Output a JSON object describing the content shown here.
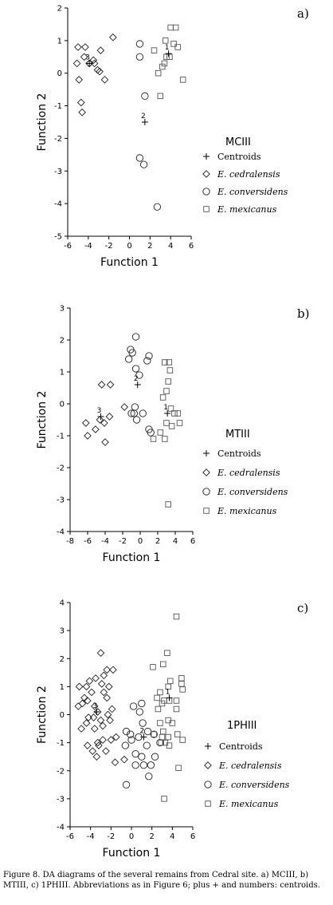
{
  "caption": "Figure 8. DA diagrams of the several remains from Cedral site. a) MCIII, b) MTIII, c) 1PHIII. Abbreviations as in Figure 6; plus + and numbers: centroids.",
  "chart_data": [
    {
      "type": "scatter",
      "panel_label": "a)",
      "title": "MCIII",
      "xlabel": "Function  1",
      "ylabel": "Function  2",
      "xlim": [
        -6,
        6
      ],
      "ylim": [
        -5,
        2
      ],
      "xticks": [
        -6,
        -4,
        -2,
        0,
        2,
        4,
        6
      ],
      "yticks": [
        -5,
        -4,
        -3,
        -2,
        -1,
        0,
        1,
        2
      ],
      "legend": [
        "Centroids",
        "E. cedralensis",
        "E. conversidens",
        "E. mexicanus"
      ],
      "series": [
        {
          "name": "E. cedralensis",
          "marker": "diamond",
          "points": [
            [
              -5,
              0.8
            ],
            [
              -4.3,
              0.8
            ],
            [
              -5.1,
              0.3
            ],
            [
              -4.4,
              0.5
            ],
            [
              -3.9,
              0.3
            ],
            [
              -3.5,
              0.4
            ],
            [
              -3.4,
              0.3
            ],
            [
              -3.1,
              0.1
            ],
            [
              -2.9,
              0.05
            ],
            [
              -2.8,
              0.7
            ],
            [
              -1.6,
              1.1
            ],
            [
              -2.4,
              -0.2
            ],
            [
              -4.9,
              -0.2
            ],
            [
              -4.7,
              -0.9
            ],
            [
              -4.6,
              -1.2
            ],
            [
              -3.9,
              0.3
            ]
          ]
        },
        {
          "name": "E. conversidens",
          "marker": "circle",
          "points": [
            [
              1,
              0.9
            ],
            [
              1,
              0.5
            ],
            [
              1.5,
              -0.7
            ],
            [
              1,
              -2.6
            ],
            [
              1.4,
              -2.8
            ],
            [
              2.7,
              -4.1
            ]
          ]
        },
        {
          "name": "E. mexicanus",
          "marker": "square",
          "points": [
            [
              4,
              1.4
            ],
            [
              4.5,
              1.4
            ],
            [
              3.5,
              1
            ],
            [
              4.3,
              0.9
            ],
            [
              4.7,
              0.8
            ],
            [
              2.4,
              0.7
            ],
            [
              3.9,
              0.5
            ],
            [
              3.4,
              0.3
            ],
            [
              3.2,
              0.2
            ],
            [
              2.8,
              0
            ],
            [
              3,
              -0.7
            ],
            [
              5.2,
              -0.2
            ],
            [
              3.6,
              0.5
            ]
          ]
        }
      ],
      "centroids": [
        {
          "label": "1",
          "x": 3.8,
          "y": 0.6
        },
        {
          "label": "2",
          "x": 1.5,
          "y": -1.5
        },
        {
          "label": "3",
          "x": -3.9,
          "y": 0.3
        }
      ]
    },
    {
      "type": "scatter",
      "panel_label": "b)",
      "title": "MTIII",
      "xlabel": "Function  1",
      "ylabel": "Function  2",
      "xlim": [
        -8,
        6
      ],
      "ylim": [
        -4,
        3
      ],
      "xticks": [
        -8,
        -6,
        -4,
        -2,
        0,
        2,
        4,
        6
      ],
      "yticks": [
        -4,
        -3,
        -2,
        -1,
        0,
        1,
        2,
        3
      ],
      "legend": [
        "Centroids",
        "E. cedralensis",
        "E. conversidens",
        "E. mexicanus"
      ],
      "series": [
        {
          "name": "E. cedralensis",
          "marker": "diamond",
          "points": [
            [
              -4.4,
              0.6
            ],
            [
              -3.4,
              0.6
            ],
            [
              -6.2,
              -0.6
            ],
            [
              -6,
              -1
            ],
            [
              -5.1,
              -0.8
            ],
            [
              -4.6,
              -0.5
            ],
            [
              -4.1,
              -0.6
            ],
            [
              -3.5,
              -0.4
            ],
            [
              -4,
              -1.2
            ],
            [
              -1.8,
              -0.1
            ]
          ]
        },
        {
          "name": "E. conversidens",
          "marker": "circle",
          "points": [
            [
              -0.5,
              2.1
            ],
            [
              -1.1,
              1.7
            ],
            [
              -0.9,
              1.6
            ],
            [
              -1.3,
              1.4
            ],
            [
              1,
              1.5
            ],
            [
              0.8,
              1.35
            ],
            [
              -0.5,
              1.1
            ],
            [
              -0.1,
              0.9
            ],
            [
              -0.6,
              -0.1
            ],
            [
              -1,
              -0.3
            ],
            [
              -0.7,
              -0.3
            ],
            [
              0.3,
              -0.3
            ],
            [
              -0.4,
              -0.5
            ],
            [
              1,
              -0.8
            ],
            [
              1.2,
              -0.9
            ]
          ]
        },
        {
          "name": "E. mexicanus",
          "marker": "square",
          "points": [
            [
              2.8,
              1.3
            ],
            [
              3.3,
              1.3
            ],
            [
              3.4,
              1.05
            ],
            [
              3.2,
              0.7
            ],
            [
              3,
              0.4
            ],
            [
              2.6,
              0.2
            ],
            [
              3.5,
              -0.15
            ],
            [
              3.9,
              -0.3
            ],
            [
              4.3,
              -0.3
            ],
            [
              3,
              -0.6
            ],
            [
              3.6,
              -0.7
            ],
            [
              4.5,
              -0.6
            ],
            [
              1.5,
              -1.1
            ],
            [
              2.3,
              -0.9
            ],
            [
              2.8,
              -1.1
            ],
            [
              3.2,
              -3.15
            ]
          ]
        }
      ],
      "centroids": [
        {
          "label": "1",
          "x": 3.1,
          "y": -0.3
        },
        {
          "label": "2",
          "x": -0.3,
          "y": 0.6
        },
        {
          "label": "3",
          "x": -4.5,
          "y": -0.4
        }
      ]
    },
    {
      "type": "scatter",
      "panel_label": "c)",
      "title": "1PHIII",
      "xlabel": "Function  1",
      "ylabel": "Function  2",
      "xlim": [
        -6,
        6
      ],
      "ylim": [
        -4,
        4
      ],
      "xticks": [
        -6,
        -4,
        -2,
        0,
        2,
        4,
        6
      ],
      "yticks": [
        -4,
        -3,
        -2,
        -1,
        0,
        1,
        2,
        3,
        4
      ],
      "legend": [
        "Centroids",
        "E. cedralensis",
        "E. conversidens",
        "E. mexicanus"
      ],
      "series": [
        {
          "name": "E. cedralensis",
          "marker": "diamond",
          "points": [
            [
              -3,
              2.2
            ],
            [
              -2.4,
              1.6
            ],
            [
              -1.8,
              1.6
            ],
            [
              -2.7,
              1.4
            ],
            [
              -3.5,
              1.3
            ],
            [
              -4.1,
              1.2
            ],
            [
              -5.1,
              1
            ],
            [
              -4.4,
              1
            ],
            [
              -2.9,
              1.1
            ],
            [
              -2.2,
              1
            ],
            [
              -2.7,
              0.8
            ],
            [
              -3.9,
              0.8
            ],
            [
              -4.6,
              0.6
            ],
            [
              -5.2,
              0.3
            ],
            [
              -4.8,
              0.4
            ],
            [
              -4.3,
              0.5
            ],
            [
              -3.6,
              0.3
            ],
            [
              -3.3,
              0.1
            ],
            [
              -2.4,
              0.6
            ],
            [
              -1.9,
              0.2
            ],
            [
              -2.3,
              0
            ],
            [
              -3,
              -0.2
            ],
            [
              -3.7,
              -0.1
            ],
            [
              -4.4,
              -0.3
            ],
            [
              -4.9,
              -0.5
            ],
            [
              -4.2,
              -0.1
            ],
            [
              -3.6,
              -0.5
            ],
            [
              -2.8,
              -0.4
            ],
            [
              -2.1,
              -0.2
            ],
            [
              -1.5,
              -0.8
            ],
            [
              -2,
              -0.9
            ],
            [
              -2.8,
              -0.9
            ],
            [
              -3.3,
              -1
            ],
            [
              -3.8,
              -1.3
            ],
            [
              -4.3,
              -1.1
            ],
            [
              -1.6,
              -1.7
            ],
            [
              -0.7,
              -1.6
            ],
            [
              -2.5,
              -1.3
            ],
            [
              -3.4,
              -1.5
            ],
            [
              -3.2,
              -1.1
            ]
          ]
        },
        {
          "name": "E. conversidens",
          "marker": "circle",
          "points": [
            [
              -0.5,
              -0.6
            ],
            [
              -0.1,
              -0.7
            ],
            [
              -0.6,
              -1.1
            ],
            [
              0,
              -0.9
            ],
            [
              0.2,
              0.3
            ],
            [
              0.8,
              0.1
            ],
            [
              1,
              0.4
            ],
            [
              1.1,
              -0.3
            ],
            [
              0.7,
              -0.8
            ],
            [
              1.6,
              -0.6
            ],
            [
              2.2,
              -0.7
            ],
            [
              2.8,
              -1
            ],
            [
              0.4,
              -1.4
            ],
            [
              1,
              -1.5
            ],
            [
              1.5,
              -1.1
            ],
            [
              1.7,
              -2.2
            ],
            [
              1.9,
              -1.8
            ],
            [
              2.3,
              -1.5
            ],
            [
              0.4,
              -1.8
            ],
            [
              1.2,
              -1.8
            ],
            [
              -0.5,
              -2.5
            ]
          ]
        },
        {
          "name": "E. mexicanus",
          "marker": "square",
          "points": [
            [
              4.4,
              3.5
            ],
            [
              3.5,
              2.2
            ],
            [
              3.1,
              1.8
            ],
            [
              2.1,
              1.7
            ],
            [
              3.8,
              1.2
            ],
            [
              4.9,
              1.3
            ],
            [
              4.9,
              1.1
            ],
            [
              3.6,
              1
            ],
            [
              2.8,
              0.8
            ],
            [
              2.5,
              0.6
            ],
            [
              3.2,
              0.5
            ],
            [
              3.7,
              0.5
            ],
            [
              3,
              0.4
            ],
            [
              4.4,
              0.5
            ],
            [
              5,
              0.9
            ],
            [
              4.4,
              0.2
            ],
            [
              2.6,
              0.2
            ],
            [
              3.6,
              -0.2
            ],
            [
              4,
              -0.3
            ],
            [
              2.8,
              -0.3
            ],
            [
              3.1,
              -0.6
            ],
            [
              4.5,
              -0.7
            ],
            [
              2.2,
              -0.7
            ],
            [
              3,
              -0.8
            ],
            [
              3.6,
              -0.8
            ],
            [
              2.9,
              -1
            ],
            [
              3.3,
              -1
            ],
            [
              3.7,
              -1.1
            ],
            [
              4.6,
              -1.9
            ],
            [
              3.2,
              -3
            ],
            [
              5,
              -0.9
            ]
          ]
        }
      ],
      "centroids": [
        {
          "label": "1",
          "x": 3.7,
          "y": 0.6
        },
        {
          "label": "2",
          "x": 1.2,
          "y": -0.8
        },
        {
          "label": "3",
          "x": -3.4,
          "y": 0.1
        }
      ]
    }
  ]
}
